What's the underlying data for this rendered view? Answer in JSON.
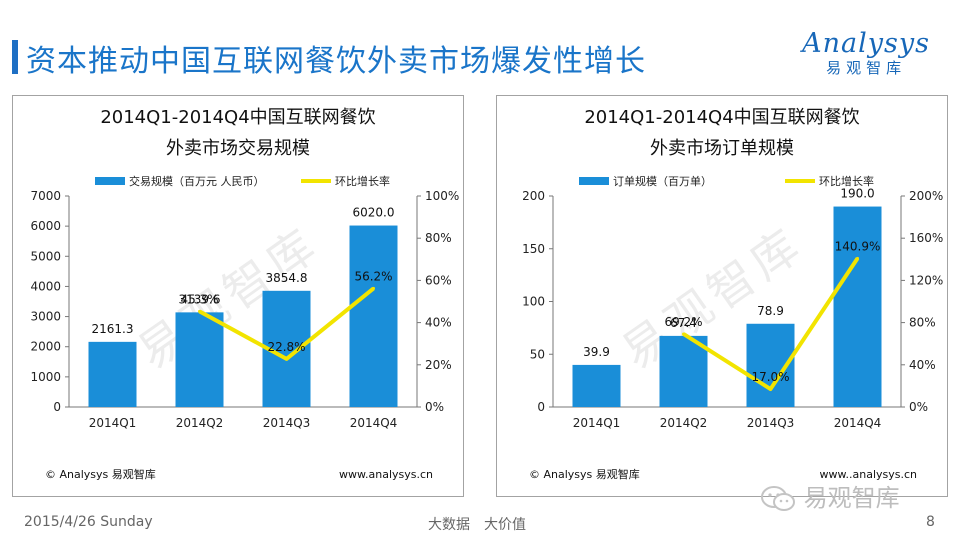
{
  "title": "资本推动中国互联网餐饮外卖市场爆发性增长",
  "logo": {
    "en": "Analysys",
    "cn": "易观智库"
  },
  "footer": {
    "date": "2015/4/26 Sunday",
    "center": "大数据　大价值",
    "page": "8"
  },
  "wechat": {
    "label": "易观智库"
  },
  "colors": {
    "bar": "#1a8ed8",
    "line": "#f2e400",
    "title": "#1a75c9"
  },
  "chart_data": [
    {
      "type": "bar",
      "title_line1": "2014Q1-2014Q4中国互联网餐饮",
      "title_line2": "外卖市场交易规模",
      "categories": [
        "2014Q1",
        "2014Q2",
        "2014Q3",
        "2014Q4"
      ],
      "series": [
        {
          "name": "交易规模（百万元 人民币）",
          "kind": "bar",
          "axis": "left",
          "values": [
            2161.3,
            3139.6,
            3854.8,
            6020.0
          ],
          "labels": [
            "2161.3",
            "3139.6",
            "3854.8",
            "6020.0"
          ]
        },
        {
          "name": "环比增长率",
          "kind": "line",
          "axis": "right",
          "values": [
            null,
            45.3,
            22.8,
            56.2
          ],
          "labels": [
            "",
            "45.3%",
            "22.8%",
            "56.2%"
          ]
        }
      ],
      "ylim": [
        0,
        7000
      ],
      "y_ticks": [
        "0",
        "1000",
        "2000",
        "3000",
        "4000",
        "5000",
        "6000",
        "7000"
      ],
      "y2lim": [
        0,
        100
      ],
      "y2_ticks": [
        "0%",
        "20%",
        "40%",
        "60%",
        "80%",
        "100%"
      ],
      "source": "© Analysys 易观智库",
      "url": "www.analysys.cn",
      "watermark": "易观智库"
    },
    {
      "type": "bar",
      "title_line1": "2014Q1-2014Q4中国互联网餐饮",
      "title_line2": "外卖市场订单规模",
      "categories": [
        "2014Q1",
        "2014Q2",
        "2014Q3",
        "2014Q4"
      ],
      "series": [
        {
          "name": "订单规模（百万单）",
          "kind": "bar",
          "axis": "left",
          "values": [
            39.9,
            67.4,
            78.9,
            190.0
          ],
          "labels": [
            "39.9",
            "67.4",
            "78.9",
            "190.0"
          ]
        },
        {
          "name": "环比增长率",
          "kind": "line",
          "axis": "right",
          "values": [
            null,
            69.2,
            17.0,
            140.9
          ],
          "labels": [
            "",
            "69.2%",
            "17.0%",
            "140.9%"
          ]
        }
      ],
      "ylim": [
        0,
        200
      ],
      "y_ticks": [
        "0",
        "50",
        "100",
        "150",
        "200"
      ],
      "y2lim": [
        0,
        200
      ],
      "y2_ticks": [
        "0%",
        "40%",
        "80%",
        "120%",
        "160%",
        "200%"
      ],
      "source": "© Analysys 易观智库",
      "url": "www..analysys.cn",
      "watermark": "易观智库"
    }
  ]
}
